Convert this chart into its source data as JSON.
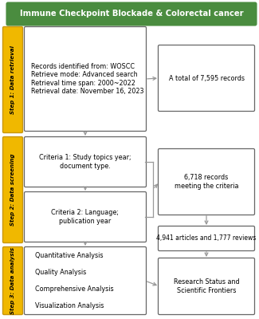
{
  "title": "Immune Checkpoint Blockade & Colorectal cancer",
  "title_bg": "#4a8c3f",
  "title_color": "white",
  "step_bg": "#f0b800",
  "step_edge": "#c8960c",
  "box_edge": "#666666",
  "arrow_color": "#999999",
  "steps": [
    {
      "label": "Step 1: Data retrieval"
    },
    {
      "label": "Step 2: Data screening"
    },
    {
      "label": "Step 3: Data analysis"
    }
  ],
  "lb1_text": "Records identified from: WOSCC\nRetrieve mode: Advanced search\nRetrieval time span: 2000~2022\nRetrieval date: November 16, 2023",
  "lb2a_text": "Criteria 1: Study topics year;\ndocument type.",
  "lb2b_text": "Criteria 2: Language;\npublication year",
  "lb3_text": "Quantitative Analysis\n\nQuality Analysis\n\nComprehensive Analysis\n\nVisualization Analysis",
  "rb1_text": "A total of 7,595 records",
  "rb2_text": "6,718 records\nmeeting the criteria",
  "rb3_text": "4,941 articles and 1,777 reviews",
  "rb4_text": "Research Status and\nScientific Frontiers",
  "fig_w": 3.25,
  "fig_h": 4.0,
  "dpi": 100
}
